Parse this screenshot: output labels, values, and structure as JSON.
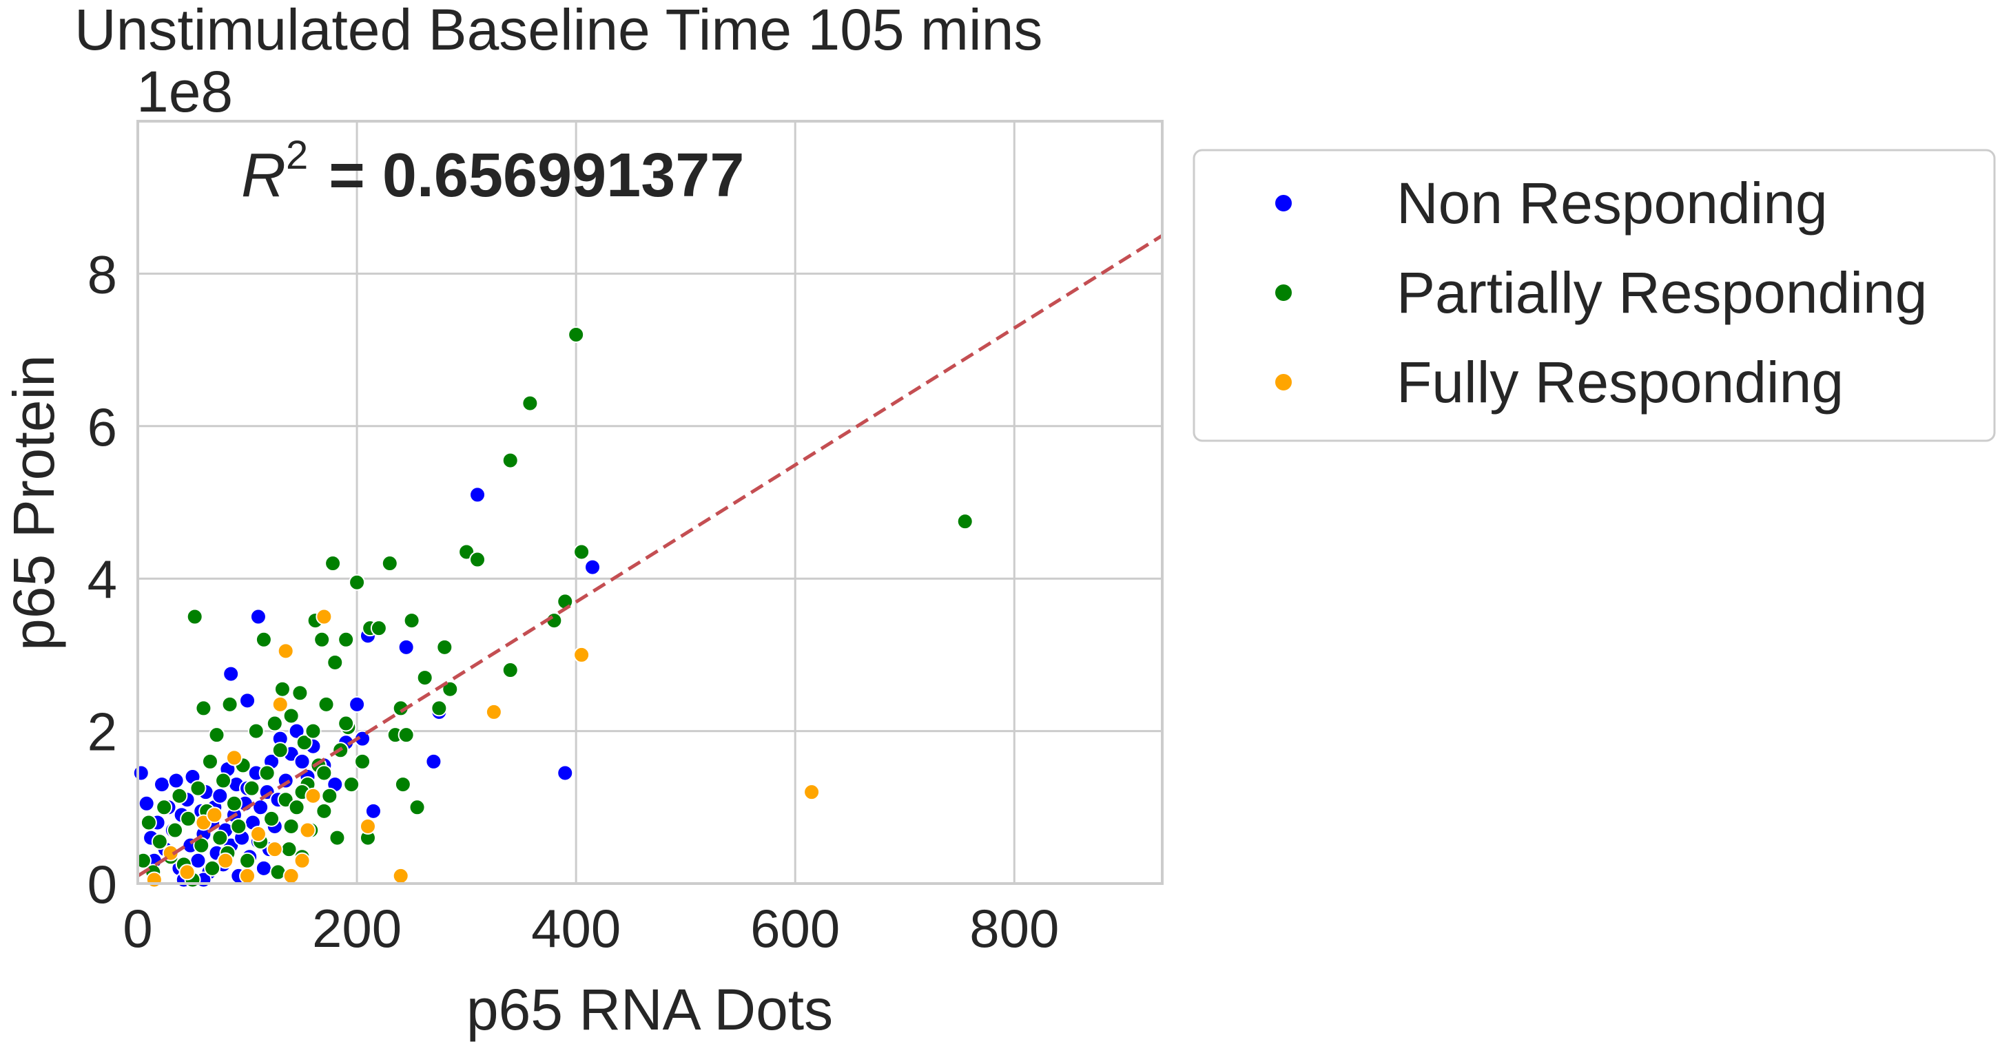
{
  "chart_data": {
    "type": "scatter",
    "title": "Unstimulated Baseline Time 105 mins",
    "xlabel": "p65 RNA Dots",
    "ylabel": "p65 Protein",
    "y_offset_label": "1e8",
    "xlim": [
      0,
      935
    ],
    "ylim": [
      0,
      10.0
    ],
    "x_ticks": [
      0,
      200,
      400,
      600,
      800
    ],
    "x_tick_labels": [
      "0",
      "200",
      "400",
      "600",
      "800"
    ],
    "y_ticks": [
      0,
      2,
      4,
      6,
      8
    ],
    "y_tick_labels": [
      "0",
      "2",
      "4",
      "6",
      "8"
    ],
    "grid": true,
    "legend_placement": "outside-upper-right",
    "annotation": {
      "r_label": "R",
      "r_exponent": "2",
      "value_text": "= 0.656991377"
    },
    "trend_line": {
      "x": [
        0,
        935
      ],
      "y": [
        0.1,
        8.5
      ],
      "color": "#c44e52",
      "style": "dashed"
    },
    "series": [
      {
        "name": "Non Responding",
        "color": "#0000ff",
        "points": [
          [
            3,
            1.45
          ],
          [
            8,
            1.05
          ],
          [
            12,
            0.6
          ],
          [
            15,
            0.3
          ],
          [
            18,
            0.8
          ],
          [
            22,
            1.3
          ],
          [
            25,
            0.45
          ],
          [
            28,
            1.0
          ],
          [
            32,
            0.7
          ],
          [
            35,
            1.35
          ],
          [
            38,
            0.2
          ],
          [
            40,
            0.9
          ],
          [
            45,
            1.1
          ],
          [
            48,
            0.5
          ],
          [
            50,
            1.4
          ],
          [
            55,
            0.3
          ],
          [
            58,
            0.95
          ],
          [
            60,
            0.65
          ],
          [
            62,
            1.2
          ],
          [
            65,
            0.15
          ],
          [
            68,
            0.8
          ],
          [
            70,
            1.0
          ],
          [
            72,
            0.4
          ],
          [
            75,
            1.15
          ],
          [
            78,
            0.25
          ],
          [
            80,
            0.7
          ],
          [
            82,
            1.5
          ],
          [
            85,
            0.5
          ],
          [
            88,
            0.9
          ],
          [
            90,
            1.3
          ],
          [
            92,
            0.1
          ],
          [
            95,
            0.6
          ],
          [
            98,
            1.05
          ],
          [
            100,
            1.25
          ],
          [
            102,
            0.35
          ],
          [
            105,
            0.8
          ],
          [
            108,
            1.45
          ],
          [
            110,
            0.55
          ],
          [
            112,
            1.0
          ],
          [
            115,
            0.2
          ],
          [
            118,
            1.2
          ],
          [
            120,
            0.45
          ],
          [
            122,
            1.6
          ],
          [
            125,
            0.75
          ],
          [
            128,
            1.1
          ],
          [
            130,
            1.9
          ],
          [
            135,
            1.35
          ],
          [
            140,
            1.7
          ],
          [
            145,
            2.0
          ],
          [
            150,
            1.6
          ],
          [
            155,
            1.4
          ],
          [
            160,
            1.8
          ],
          [
            170,
            1.55
          ],
          [
            180,
            1.3
          ],
          [
            190,
            1.85
          ],
          [
            200,
            2.35
          ],
          [
            205,
            1.9
          ],
          [
            210,
            3.25
          ],
          [
            215,
            0.95
          ],
          [
            245,
            3.1
          ],
          [
            270,
            1.6
          ],
          [
            275,
            2.25
          ],
          [
            310,
            5.1
          ],
          [
            390,
            1.45
          ],
          [
            415,
            4.15
          ],
          [
            110,
            3.5
          ],
          [
            100,
            2.4
          ],
          [
            85,
            2.75
          ],
          [
            60,
            0.05
          ],
          [
            42,
            0.05
          ]
        ]
      },
      {
        "name": "Partially Responding",
        "color": "#008000",
        "points": [
          [
            5,
            0.3
          ],
          [
            10,
            0.8
          ],
          [
            14,
            0.15
          ],
          [
            20,
            0.55
          ],
          [
            24,
            1.0
          ],
          [
            30,
            0.35
          ],
          [
            34,
            0.7
          ],
          [
            38,
            1.15
          ],
          [
            42,
            0.25
          ],
          [
            46,
            0.85
          ],
          [
            50,
            0.05
          ],
          [
            52,
            3.5
          ],
          [
            55,
            1.25
          ],
          [
            58,
            0.5
          ],
          [
            60,
            2.3
          ],
          [
            63,
            0.95
          ],
          [
            66,
            1.6
          ],
          [
            68,
            0.2
          ],
          [
            72,
            1.95
          ],
          [
            75,
            0.6
          ],
          [
            78,
            1.35
          ],
          [
            82,
            0.4
          ],
          [
            84,
            2.35
          ],
          [
            88,
            1.05
          ],
          [
            92,
            0.75
          ],
          [
            96,
            1.55
          ],
          [
            100,
            0.3
          ],
          [
            104,
            1.25
          ],
          [
            108,
            2.0
          ],
          [
            112,
            0.55
          ],
          [
            115,
            3.2
          ],
          [
            118,
            1.45
          ],
          [
            122,
            0.85
          ],
          [
            125,
            2.1
          ],
          [
            128,
            0.15
          ],
          [
            130,
            1.75
          ],
          [
            132,
            2.55
          ],
          [
            135,
            1.1
          ],
          [
            138,
            0.45
          ],
          [
            140,
            2.2
          ],
          [
            145,
            1.0
          ],
          [
            148,
            2.5
          ],
          [
            150,
            0.35
          ],
          [
            152,
            1.85
          ],
          [
            155,
            1.3
          ],
          [
            158,
            0.7
          ],
          [
            160,
            2.0
          ],
          [
            162,
            3.45
          ],
          [
            165,
            1.55
          ],
          [
            168,
            3.2
          ],
          [
            170,
            0.95
          ],
          [
            172,
            2.35
          ],
          [
            175,
            1.15
          ],
          [
            178,
            4.2
          ],
          [
            180,
            2.9
          ],
          [
            182,
            0.6
          ],
          [
            185,
            1.75
          ],
          [
            190,
            3.2
          ],
          [
            192,
            2.05
          ],
          [
            195,
            1.3
          ],
          [
            200,
            3.95
          ],
          [
            205,
            1.6
          ],
          [
            210,
            0.6
          ],
          [
            212,
            3.35
          ],
          [
            220,
            3.35
          ],
          [
            230,
            4.2
          ],
          [
            235,
            1.95
          ],
          [
            240,
            2.3
          ],
          [
            242,
            1.3
          ],
          [
            245,
            1.95
          ],
          [
            250,
            3.45
          ],
          [
            255,
            1.0
          ],
          [
            262,
            2.7
          ],
          [
            275,
            2.3
          ],
          [
            280,
            3.1
          ],
          [
            285,
            2.55
          ],
          [
            300,
            4.35
          ],
          [
            310,
            4.25
          ],
          [
            340,
            2.8
          ],
          [
            340,
            5.55
          ],
          [
            358,
            6.3
          ],
          [
            380,
            3.45
          ],
          [
            390,
            3.7
          ],
          [
            400,
            7.2
          ],
          [
            405,
            4.35
          ],
          [
            755,
            4.75
          ],
          [
            190,
            2.1
          ],
          [
            170,
            1.45
          ],
          [
            150,
            1.2
          ],
          [
            140,
            0.75
          ]
        ]
      },
      {
        "name": "Fully Responding",
        "color": "#ffa500",
        "points": [
          [
            15,
            0.05
          ],
          [
            30,
            0.4
          ],
          [
            45,
            0.15
          ],
          [
            60,
            0.8
          ],
          [
            70,
            0.9
          ],
          [
            80,
            0.3
          ],
          [
            88,
            1.65
          ],
          [
            100,
            0.1
          ],
          [
            110,
            0.65
          ],
          [
            125,
            0.45
          ],
          [
            130,
            2.35
          ],
          [
            135,
            3.05
          ],
          [
            140,
            0.1
          ],
          [
            150,
            0.3
          ],
          [
            155,
            0.7
          ],
          [
            160,
            1.15
          ],
          [
            170,
            3.5
          ],
          [
            210,
            0.75
          ],
          [
            240,
            0.1
          ],
          [
            325,
            2.25
          ],
          [
            405,
            3.0
          ],
          [
            615,
            1.2
          ]
        ]
      }
    ]
  }
}
